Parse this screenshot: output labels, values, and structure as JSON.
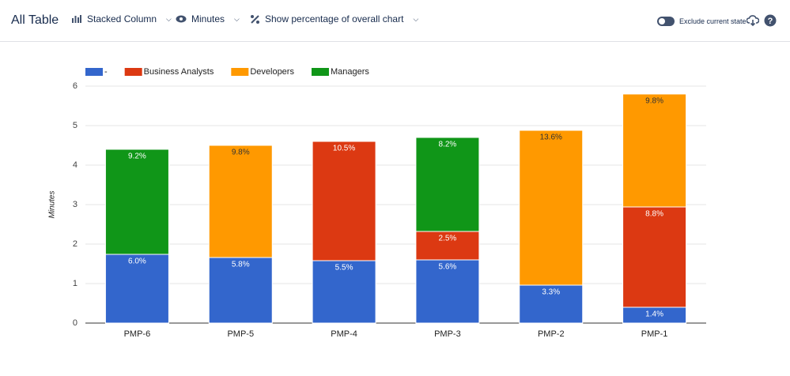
{
  "header": {
    "title": "All Table",
    "chart_type": "Stacked Column",
    "measure": "Minutes",
    "percentage_option": "Show percentage of overall chart",
    "toggle_label": "Exclude current state"
  },
  "chart_data": {
    "type": "stacked_bar",
    "y_label": "Minutes",
    "categories": [
      "PMP-6",
      "PMP-5",
      "PMP-4",
      "PMP-3",
      "PMP-2",
      "PMP-1"
    ],
    "series": [
      {
        "name": "-",
        "color": "#3366cc",
        "label_color": "#ffffff",
        "values": [
          1.74,
          1.66,
          1.58,
          1.6,
          0.96,
          0.4
        ],
        "percent_labels": [
          "6.0%",
          "5.8%",
          "5.5%",
          "5.6%",
          "3.3%",
          "1.4%"
        ]
      },
      {
        "name": "Business Analysts",
        "color": "#dc3912",
        "label_color": "#ffffff",
        "values": [
          null,
          null,
          3.02,
          0.72,
          null,
          2.54
        ],
        "percent_labels": [
          null,
          null,
          "10.5%",
          "2.5%",
          null,
          "8.8%"
        ]
      },
      {
        "name": "Developers",
        "color": "#ff9900",
        "label_color": "#333333",
        "values": [
          null,
          2.84,
          null,
          null,
          3.92,
          2.86
        ],
        "percent_labels": [
          null,
          "9.8%",
          null,
          null,
          "13.6%",
          "9.8%"
        ]
      },
      {
        "name": "Managers",
        "color": "#109618",
        "label_color": "#ffffff",
        "values": [
          2.66,
          null,
          null,
          2.38,
          null,
          null
        ],
        "percent_labels": [
          "9.2%",
          null,
          null,
          "8.2%",
          null,
          null
        ]
      }
    ],
    "ylim": [
      0,
      6
    ],
    "yticks": [
      0,
      1,
      2,
      3,
      4,
      5,
      6
    ],
    "grid": true,
    "legend": "top-left"
  }
}
